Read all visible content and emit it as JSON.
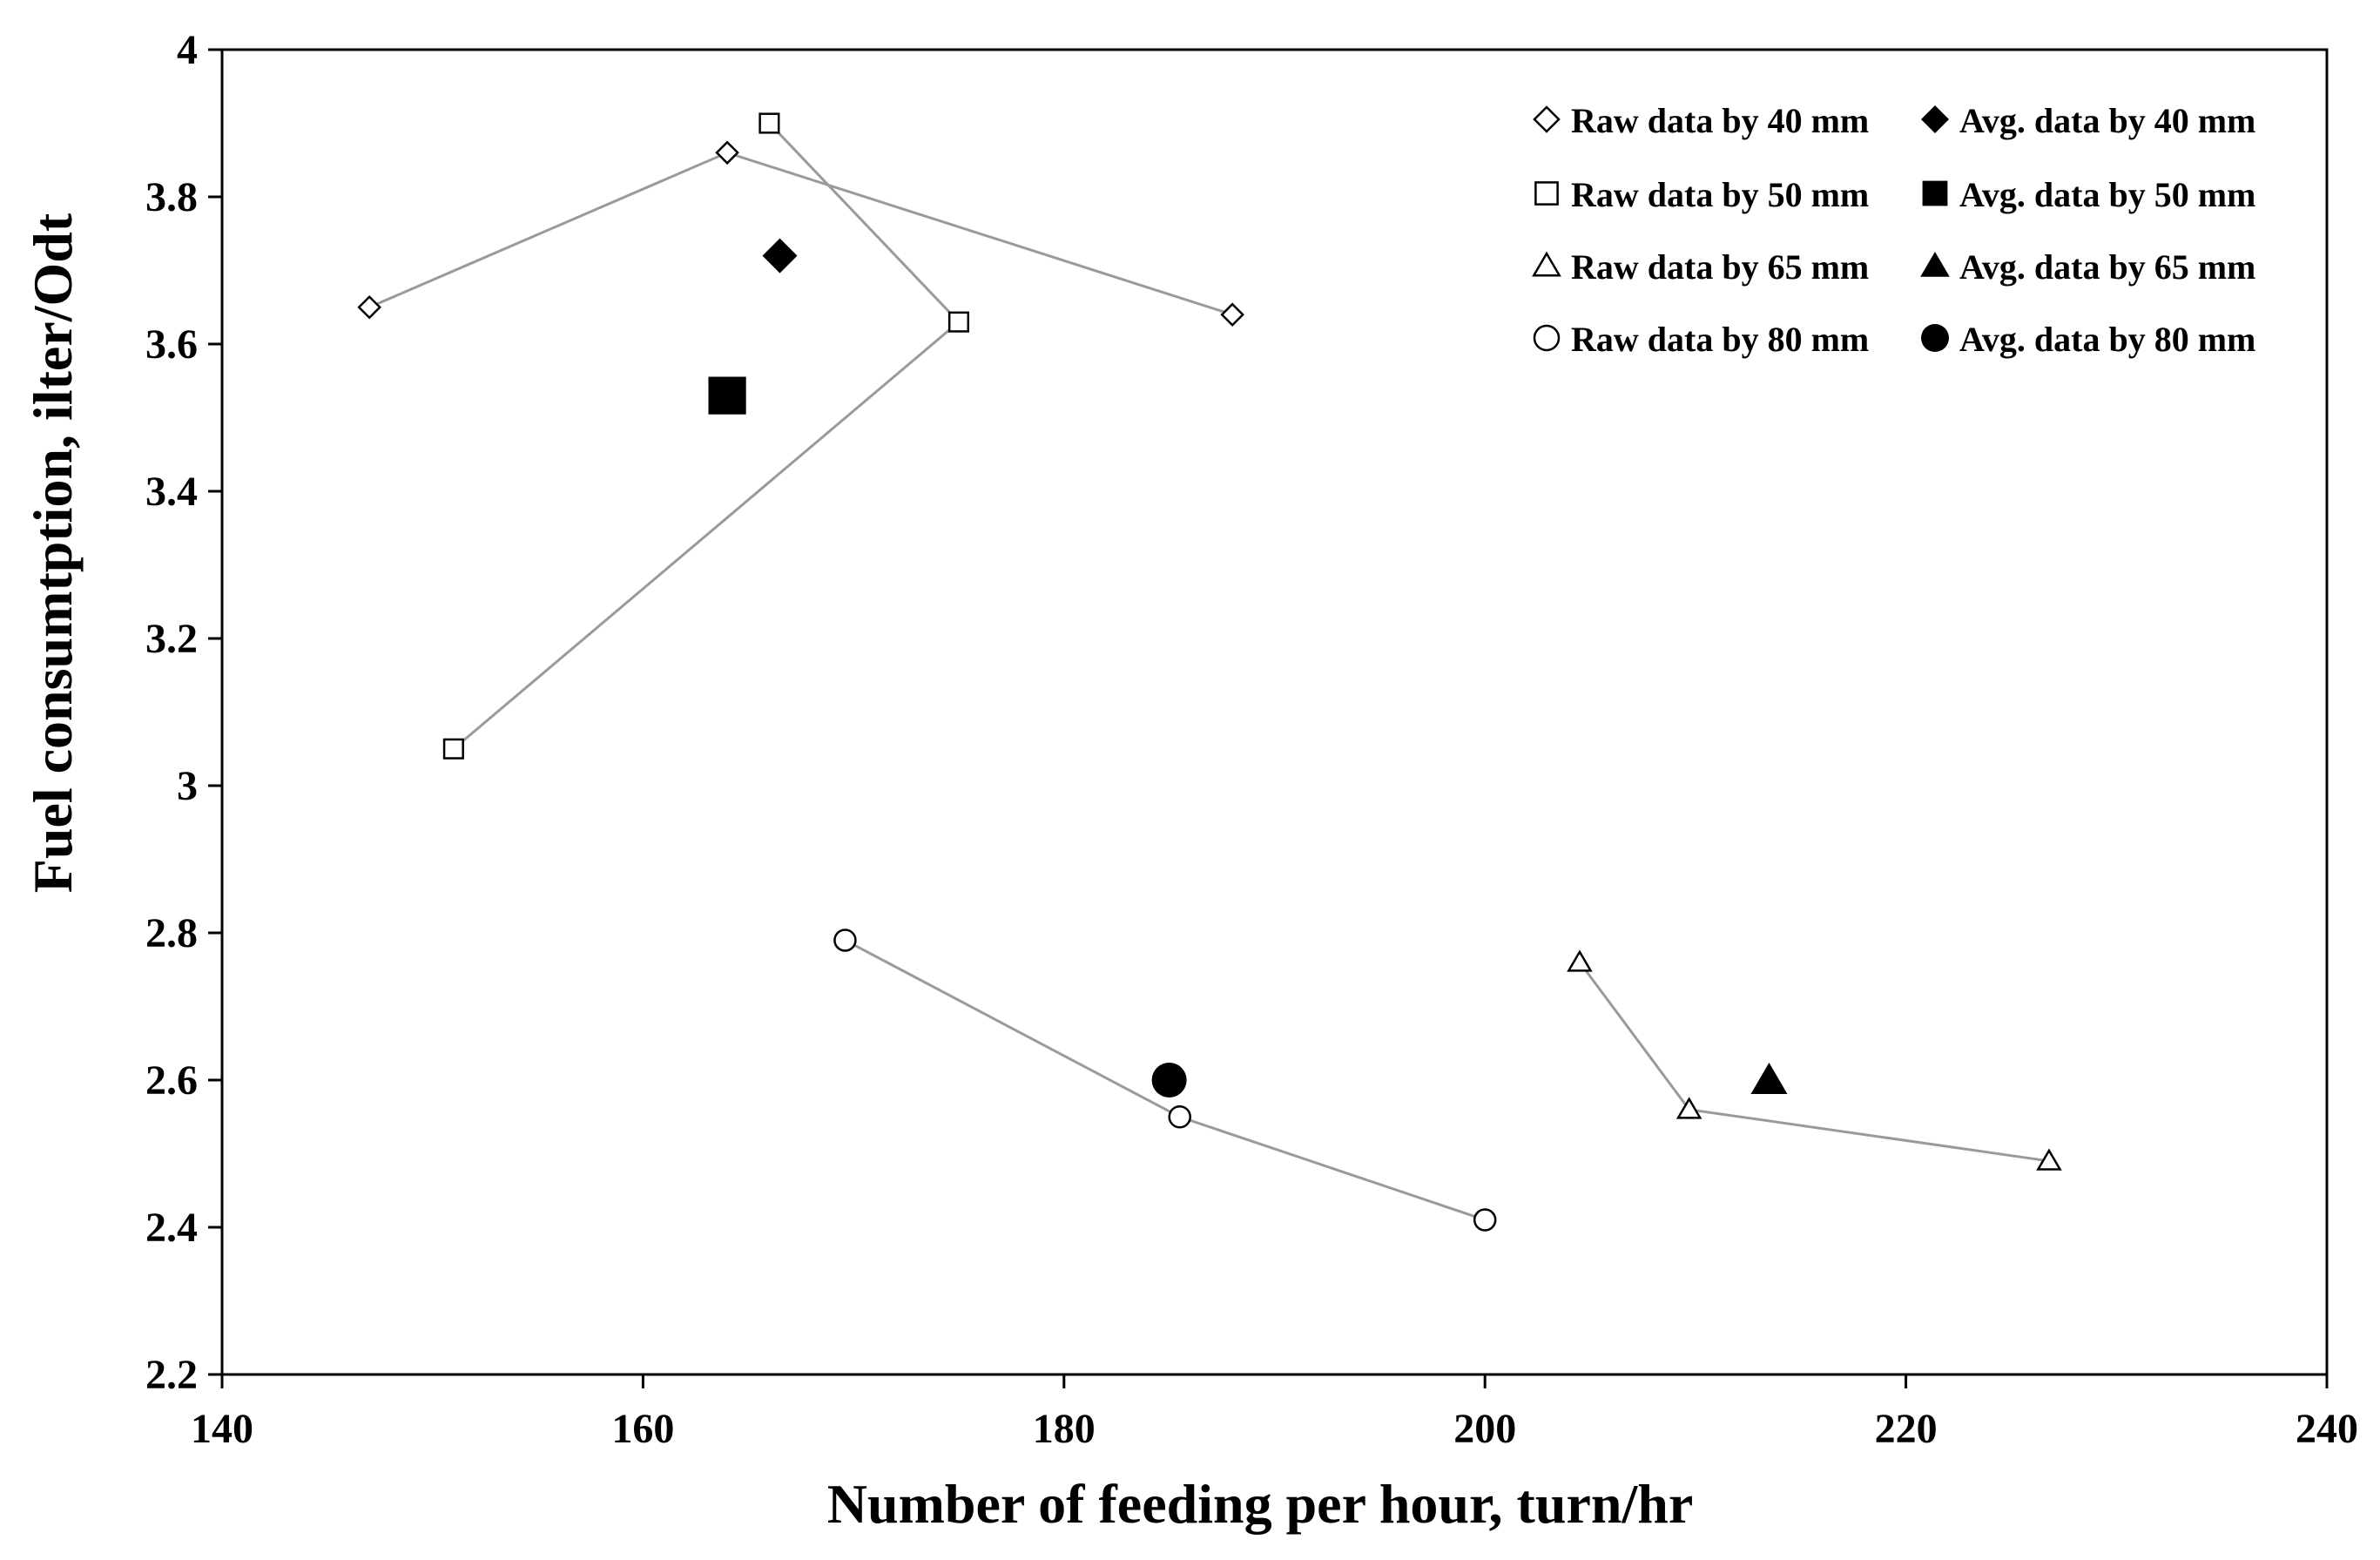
{
  "chart_data": {
    "type": "scatter",
    "title": "",
    "xlabel": "Number of feeding per hour, turn/hr",
    "ylabel": "Fuel consumtption, ilter/Odt",
    "xlim": [
      140,
      240
    ],
    "ylim": [
      2.2,
      4.0
    ],
    "xticks": [
      140,
      160,
      180,
      200,
      220,
      240
    ],
    "xtick_labels": [
      "140",
      "160",
      "180",
      "200",
      "220",
      "240"
    ],
    "yticks": [
      2.2,
      2.4,
      2.6,
      2.8,
      3.0,
      3.2,
      3.4,
      3.6,
      3.8,
      4.0
    ],
    "ytick_labels": [
      "2.2",
      "2.4",
      "2.6",
      "2.8",
      "3",
      "3.2",
      "3.4",
      "3.6",
      "3.8",
      "4"
    ],
    "grid": false,
    "legend_position": "top-right",
    "line_color": "#9a9a9a",
    "series": [
      {
        "name": "Raw data by 40 mm",
        "marker": "diamond",
        "filled": false,
        "line": true,
        "x": [
          147,
          164,
          188
        ],
        "y": [
          3.65,
          3.86,
          3.64
        ]
      },
      {
        "name": "Avg. data by 40 mm",
        "marker": "diamond",
        "filled": true,
        "line": false,
        "x": [
          166.5
        ],
        "y": [
          3.72
        ]
      },
      {
        "name": "Raw data by 50 mm",
        "marker": "square",
        "filled": false,
        "line": true,
        "x": [
          151,
          175,
          166
        ],
        "y": [
          3.05,
          3.63,
          3.9
        ]
      },
      {
        "name": "Avg. data by 50 mm",
        "marker": "square",
        "filled": true,
        "line": false,
        "x": [
          164
        ],
        "y": [
          3.53
        ]
      },
      {
        "name": "Raw data by 65 mm",
        "marker": "triangle",
        "filled": false,
        "line": true,
        "x": [
          204.5,
          209.7,
          226.8
        ],
        "y": [
          2.76,
          2.56,
          2.49
        ]
      },
      {
        "name": "Avg. data by 65 mm",
        "marker": "triangle",
        "filled": true,
        "line": false,
        "x": [
          213.5
        ],
        "y": [
          2.6
        ]
      },
      {
        "name": "Raw data by 80 mm",
        "marker": "circle",
        "filled": false,
        "line": true,
        "x": [
          169.6,
          185.5,
          200
        ],
        "y": [
          2.79,
          2.55,
          2.41
        ]
      },
      {
        "name": "Avg. data by 80 mm",
        "marker": "circle",
        "filled": true,
        "line": false,
        "x": [
          185
        ],
        "y": [
          2.6
        ]
      }
    ]
  }
}
